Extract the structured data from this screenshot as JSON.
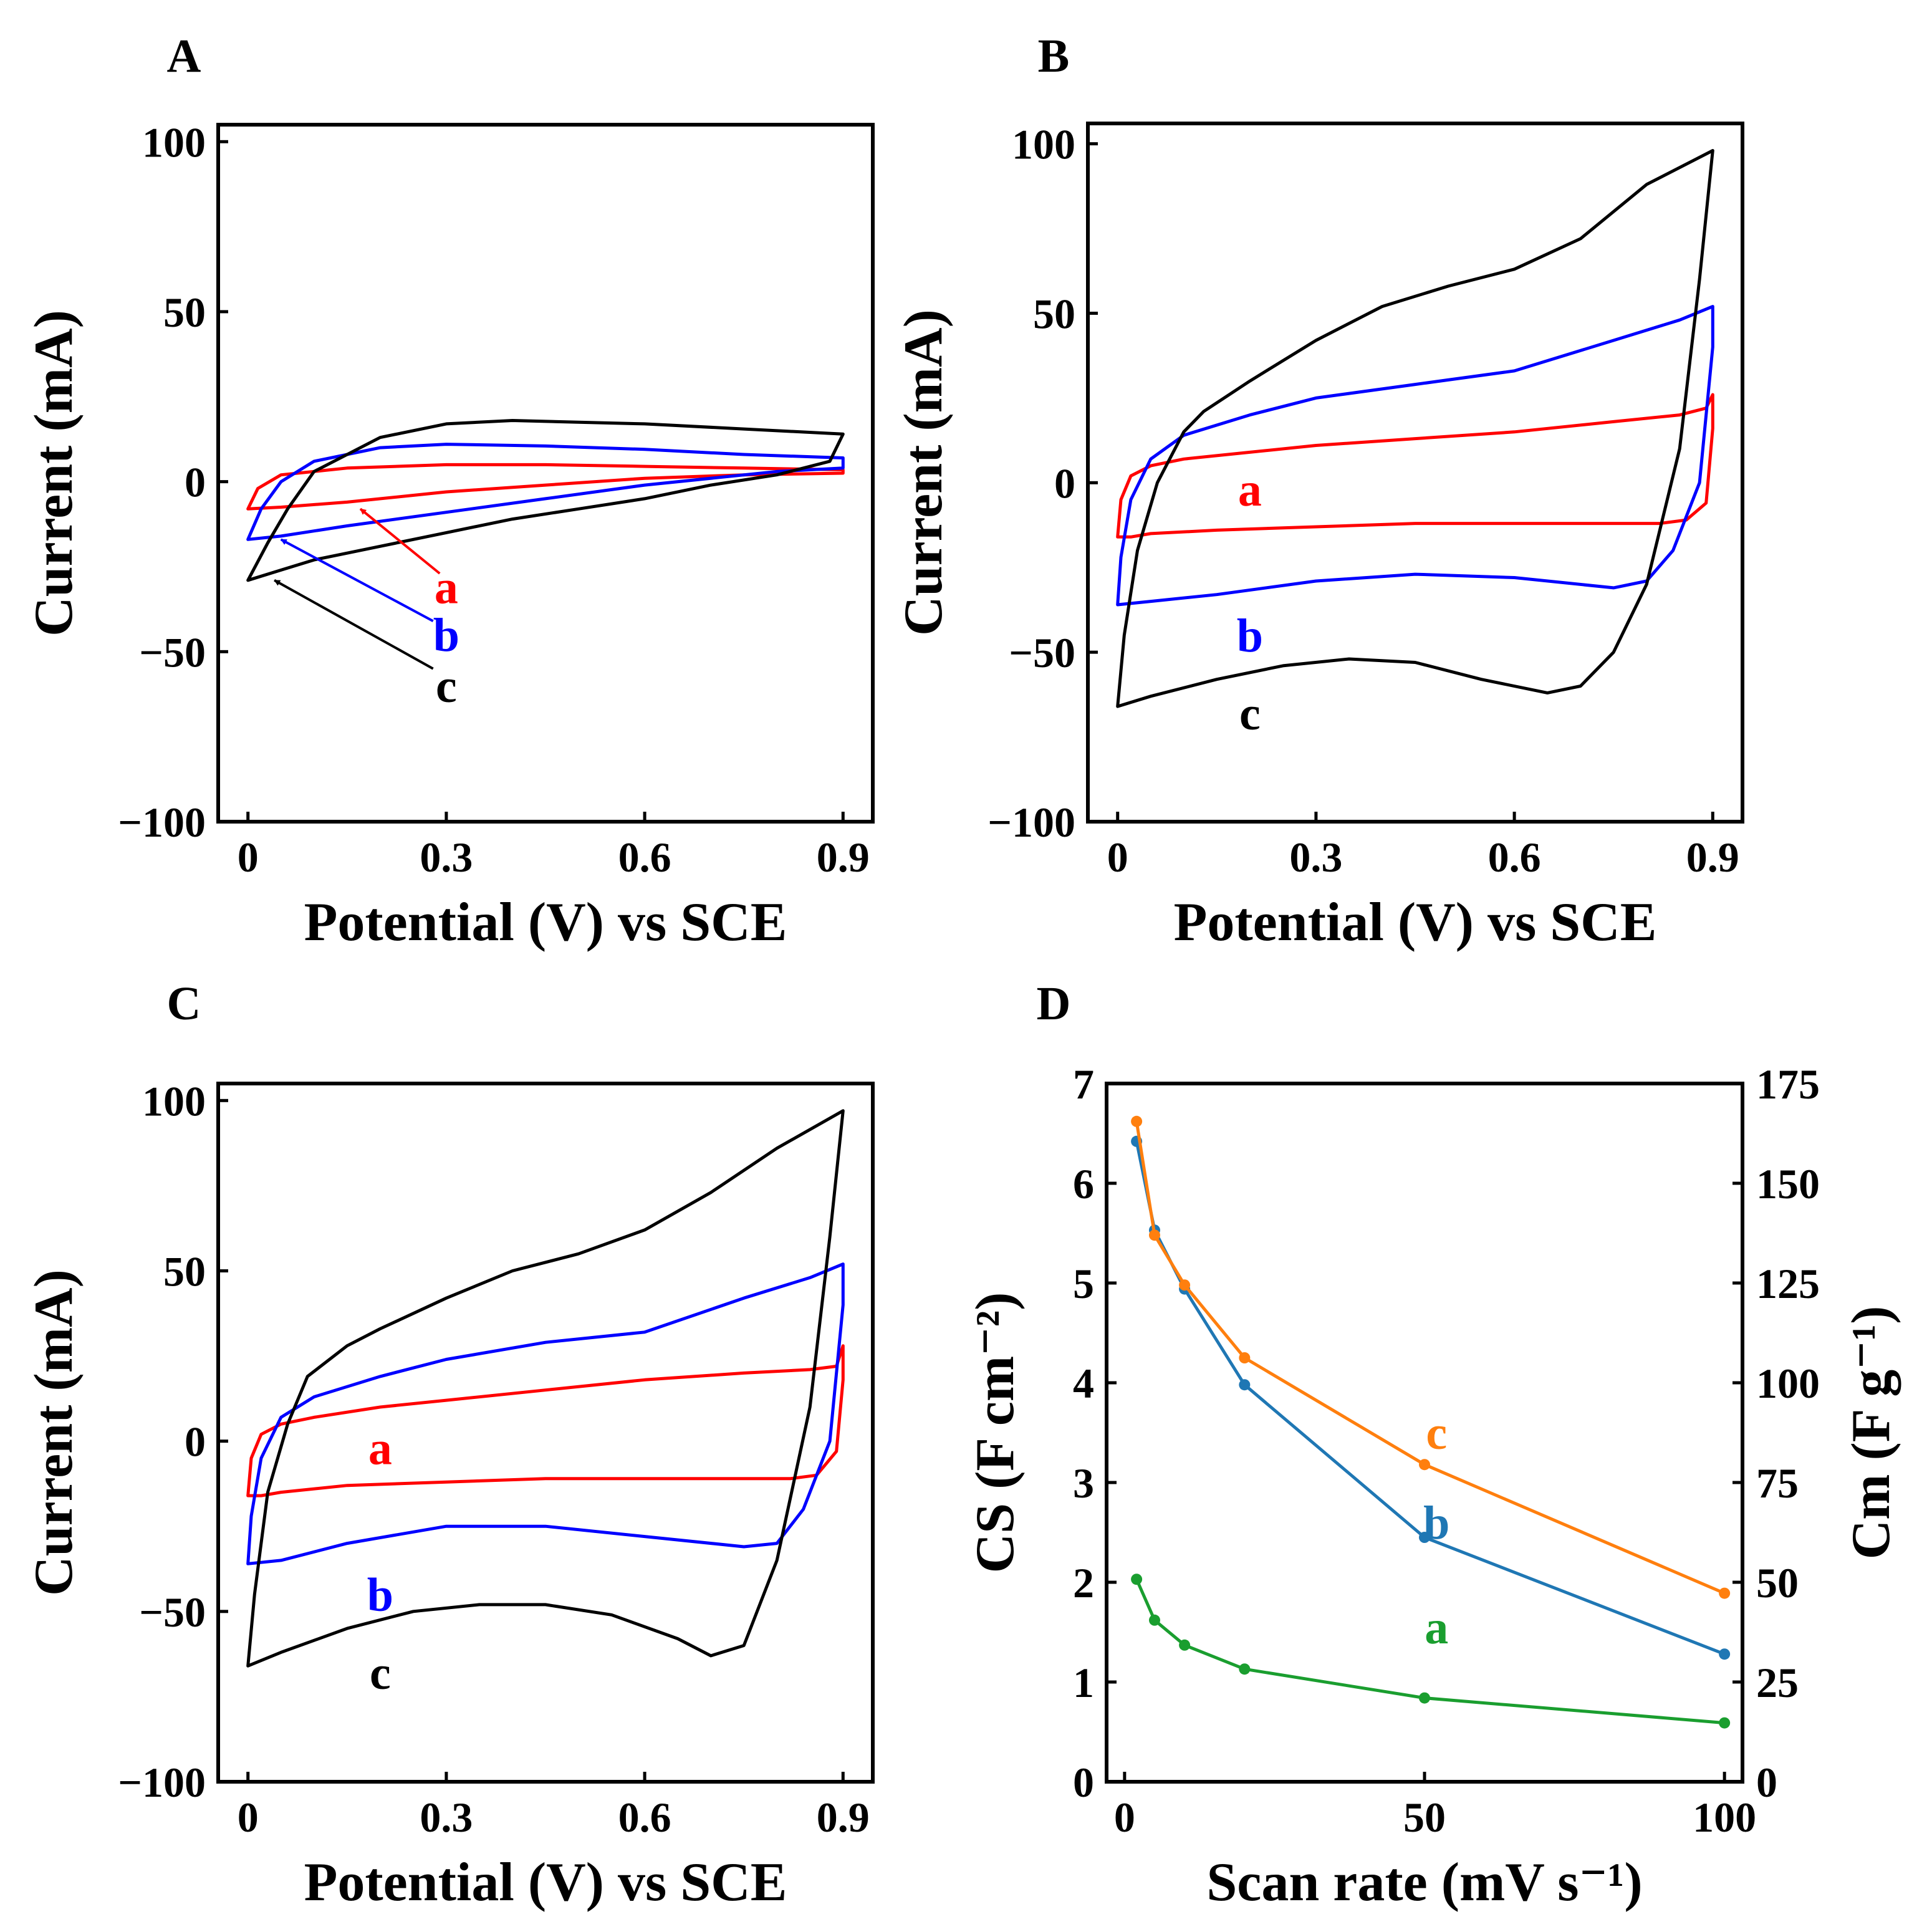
{
  "chart_data": [
    {
      "panel": "A",
      "type": "line",
      "xlabel": "Potential (V) vs SCE",
      "ylabel": "Current (mA)",
      "xlim": [
        -0.045,
        0.945
      ],
      "ylim": [
        -100,
        105
      ],
      "xticks": [
        0,
        0.3,
        0.6,
        0.9
      ],
      "xtick_labels": [
        "0",
        "0.3",
        "0.6",
        "0.9"
      ],
      "yticks": [
        -100,
        -50,
        0,
        50,
        100
      ],
      "ytick_labels": [
        "−100",
        "−50",
        "0",
        "50",
        "100"
      ],
      "series": [
        {
          "name": "a",
          "color": "#ff0000",
          "x": [
            0,
            0.015,
            0.05,
            0.15,
            0.3,
            0.45,
            0.6,
            0.75,
            0.9,
            0.9,
            0.75,
            0.6,
            0.45,
            0.3,
            0.15,
            0.05,
            0.0,
            0
          ],
          "y": [
            -8,
            -2,
            2,
            4,
            5,
            5,
            4.5,
            4,
            3.5,
            2.5,
            2,
            1,
            -1,
            -3,
            -6,
            -7.5,
            -8,
            -8
          ]
        },
        {
          "name": "b",
          "color": "#0000ff",
          "x": [
            0,
            0.02,
            0.05,
            0.1,
            0.2,
            0.3,
            0.45,
            0.6,
            0.75,
            0.9,
            0.9,
            0.8,
            0.6,
            0.45,
            0.3,
            0.15,
            0.05,
            0.0,
            0
          ],
          "y": [
            -17,
            -8,
            0,
            6,
            10,
            11,
            10.5,
            9.5,
            8,
            7,
            4,
            3,
            -1,
            -5,
            -9,
            -13,
            -16,
            -17,
            -17
          ]
        },
        {
          "name": "c",
          "color": "#000000",
          "x": [
            0,
            0.03,
            0.06,
            0.1,
            0.2,
            0.3,
            0.4,
            0.5,
            0.6,
            0.75,
            0.9,
            0.88,
            0.8,
            0.7,
            0.6,
            0.5,
            0.4,
            0.3,
            0.2,
            0.1,
            0.05,
            0.0,
            0
          ],
          "y": [
            -29,
            -18,
            -8,
            3,
            13,
            17,
            18,
            17.5,
            17,
            15.5,
            14,
            6,
            2,
            -1,
            -5,
            -8,
            -11,
            -15,
            -19,
            -23,
            -26,
            -29,
            -29
          ]
        }
      ],
      "labels": [
        {
          "text": "a",
          "color": "#ff0000",
          "x": 0.3,
          "y": -31
        },
        {
          "text": "b",
          "color": "#0000ff",
          "x": 0.3,
          "y": -45
        },
        {
          "text": "c",
          "color": "#000000",
          "x": 0.3,
          "y": -60
        }
      ],
      "arrows": [
        {
          "color": "#ff0000",
          "from": [
            0.29,
            -27
          ],
          "to": [
            0.17,
            -8
          ]
        },
        {
          "color": "#0000ff",
          "from": [
            0.28,
            -41
          ],
          "to": [
            0.05,
            -17
          ]
        },
        {
          "color": "#000000",
          "from": [
            0.28,
            -55
          ],
          "to": [
            0.04,
            -29
          ]
        }
      ]
    },
    {
      "panel": "B",
      "type": "line",
      "xlabel": "Potential (V) vs SCE",
      "ylabel": "Current (mA)",
      "xlim": [
        -0.045,
        0.945
      ],
      "ylim": [
        -100,
        106
      ],
      "xticks": [
        0,
        0.3,
        0.6,
        0.9
      ],
      "xtick_labels": [
        "0",
        "0.3",
        "0.6",
        "0.9"
      ],
      "yticks": [
        -100,
        -50,
        0,
        50,
        100
      ],
      "ytick_labels": [
        "−100",
        "−50",
        "0",
        "50",
        "100"
      ],
      "series": [
        {
          "name": "a",
          "color": "#ff0000",
          "x": [
            0,
            0.005,
            0.02,
            0.05,
            0.1,
            0.2,
            0.3,
            0.45,
            0.6,
            0.75,
            0.85,
            0.89,
            0.9,
            0.9,
            0.89,
            0.86,
            0.82,
            0.75,
            0.6,
            0.45,
            0.3,
            0.15,
            0.05,
            0.02,
            0.0,
            0
          ],
          "y": [
            -16,
            -5,
            2,
            5,
            7,
            9,
            11,
            13,
            15,
            18,
            20,
            22,
            26,
            16,
            -6,
            -11,
            -12,
            -12,
            -12,
            -12,
            -13,
            -14,
            -15,
            -16,
            -16,
            -16
          ]
        },
        {
          "name": "b",
          "color": "#0000ff",
          "x": [
            0,
            0.005,
            0.02,
            0.05,
            0.1,
            0.2,
            0.3,
            0.45,
            0.6,
            0.75,
            0.85,
            0.9,
            0.9,
            0.88,
            0.84,
            0.8,
            0.75,
            0.6,
            0.45,
            0.3,
            0.15,
            0.05,
            0.0,
            0
          ],
          "y": [
            -36,
            -22,
            -5,
            7,
            14,
            20,
            25,
            29,
            33,
            42,
            48,
            52,
            40,
            0,
            -20,
            -29,
            -31,
            -28,
            -27,
            -29,
            -33,
            -35,
            -36,
            -36
          ]
        },
        {
          "name": "c",
          "color": "#000000",
          "x": [
            0,
            0.01,
            0.03,
            0.06,
            0.1,
            0.13,
            0.2,
            0.3,
            0.4,
            0.5,
            0.6,
            0.7,
            0.8,
            0.9,
            0.88,
            0.85,
            0.8,
            0.75,
            0.7,
            0.65,
            0.55,
            0.45,
            0.35,
            0.25,
            0.15,
            0.05,
            0.0,
            0
          ],
          "y": [
            -66,
            -45,
            -20,
            0,
            15,
            21,
            30,
            42,
            52,
            58,
            63,
            72,
            88,
            98,
            60,
            10,
            -30,
            -50,
            -60,
            -62,
            -58,
            -53,
            -52,
            -54,
            -58,
            -63,
            -66,
            -66
          ]
        }
      ],
      "labels": [
        {
          "text": "a",
          "color": "#ff0000",
          "x": 0.2,
          "y": -2
        },
        {
          "text": "b",
          "color": "#0000ff",
          "x": 0.2,
          "y": -45
        },
        {
          "text": "c",
          "color": "#000000",
          "x": 0.2,
          "y": -68
        }
      ],
      "arrows": []
    },
    {
      "panel": "C",
      "type": "line",
      "xlabel": "Potential (V) vs SCE",
      "ylabel": "Current (mA)",
      "xlim": [
        -0.045,
        0.945
      ],
      "ylim": [
        -100,
        105
      ],
      "xticks": [
        0,
        0.3,
        0.6,
        0.9
      ],
      "xtick_labels": [
        "0",
        "0.3",
        "0.6",
        "0.9"
      ],
      "yticks": [
        -100,
        -50,
        0,
        50,
        100
      ],
      "ytick_labels": [
        "−100",
        "−50",
        "0",
        "50",
        "100"
      ],
      "series": [
        {
          "name": "a",
          "color": "#ff0000",
          "x": [
            0,
            0.005,
            0.02,
            0.05,
            0.1,
            0.2,
            0.3,
            0.45,
            0.6,
            0.75,
            0.85,
            0.89,
            0.9,
            0.9,
            0.89,
            0.86,
            0.82,
            0.75,
            0.6,
            0.45,
            0.3,
            0.15,
            0.05,
            0.02,
            0.0,
            0
          ],
          "y": [
            -16,
            -5,
            2,
            5,
            7,
            10,
            12,
            15,
            18,
            20,
            21,
            22,
            28,
            18,
            -3,
            -10,
            -11,
            -11,
            -11,
            -11,
            -12,
            -13,
            -15,
            -16,
            -16,
            -16
          ]
        },
        {
          "name": "b",
          "color": "#0000ff",
          "x": [
            0,
            0.005,
            0.02,
            0.05,
            0.1,
            0.2,
            0.3,
            0.45,
            0.6,
            0.75,
            0.85,
            0.9,
            0.9,
            0.88,
            0.84,
            0.8,
            0.75,
            0.6,
            0.45,
            0.3,
            0.15,
            0.05,
            0.0,
            0
          ],
          "y": [
            -36,
            -22,
            -5,
            7,
            13,
            19,
            24,
            29,
            32,
            42,
            48,
            52,
            40,
            0,
            -20,
            -30,
            -31,
            -28,
            -25,
            -25,
            -30,
            -35,
            -36,
            -36
          ]
        },
        {
          "name": "c",
          "color": "#000000",
          "x": [
            0,
            0.01,
            0.03,
            0.06,
            0.09,
            0.15,
            0.2,
            0.3,
            0.4,
            0.5,
            0.6,
            0.7,
            0.8,
            0.9,
            0.88,
            0.85,
            0.8,
            0.75,
            0.7,
            0.65,
            0.55,
            0.45,
            0.35,
            0.25,
            0.15,
            0.05,
            0.0,
            0
          ],
          "y": [
            -66,
            -45,
            -15,
            5,
            19,
            28,
            33,
            42,
            50,
            55,
            62,
            73,
            86,
            97,
            60,
            10,
            -35,
            -60,
            -63,
            -58,
            -51,
            -48,
            -48,
            -50,
            -55,
            -62,
            -66,
            -66
          ]
        }
      ],
      "labels": [
        {
          "text": "a",
          "color": "#ff0000",
          "x": 0.2,
          "y": -2
        },
        {
          "text": "b",
          "color": "#0000ff",
          "x": 0.2,
          "y": -45
        },
        {
          "text": "c",
          "color": "#000000",
          "x": 0.2,
          "y": -68
        }
      ],
      "arrows": []
    },
    {
      "panel": "D",
      "type": "line",
      "xlabel": "Scan rate (mV s⁻¹)",
      "ylabel_left": "CS (F cm⁻²)",
      "ylabel_right": "Cm (F g⁻¹)",
      "xlim": [
        -3,
        103
      ],
      "ylim": [
        0,
        7
      ],
      "ylim_right": [
        0,
        175
      ],
      "xticks": [
        0,
        50,
        100
      ],
      "xtick_labels": [
        "0",
        "50",
        "100"
      ],
      "yticks": [
        0,
        1,
        2,
        3,
        4,
        5,
        6,
        7
      ],
      "ytick_labels": [
        "0",
        "1",
        "2",
        "3",
        "4",
        "5",
        "6",
        "7"
      ],
      "yticks_right": [
        0,
        25,
        50,
        75,
        100,
        125,
        150,
        175
      ],
      "ytick_labels_right": [
        "0",
        "25",
        "50",
        "75",
        "100",
        "125",
        "150",
        "175"
      ],
      "x": [
        2,
        5,
        10,
        20,
        50,
        100
      ],
      "series": [
        {
          "name": "a",
          "color": "#1a9e2f",
          "values": [
            2.03,
            1.62,
            1.37,
            1.13,
            0.84,
            0.59
          ]
        },
        {
          "name": "b",
          "color": "#1f77b4",
          "values": [
            6.42,
            5.53,
            4.94,
            3.98,
            2.45,
            1.28
          ]
        },
        {
          "name": "c",
          "color": "#ff7f0e",
          "values": [
            6.62,
            5.48,
            4.98,
            4.25,
            3.18,
            1.89
          ]
        }
      ],
      "labels": [
        {
          "text": "a",
          "color": "#1a9e2f",
          "x": 52,
          "y": 1.55
        },
        {
          "text": "b",
          "color": "#1f77b4",
          "x": 52,
          "y": 2.6
        },
        {
          "text": "c",
          "color": "#ff7f0e",
          "x": 52,
          "y": 3.5
        }
      ]
    }
  ]
}
